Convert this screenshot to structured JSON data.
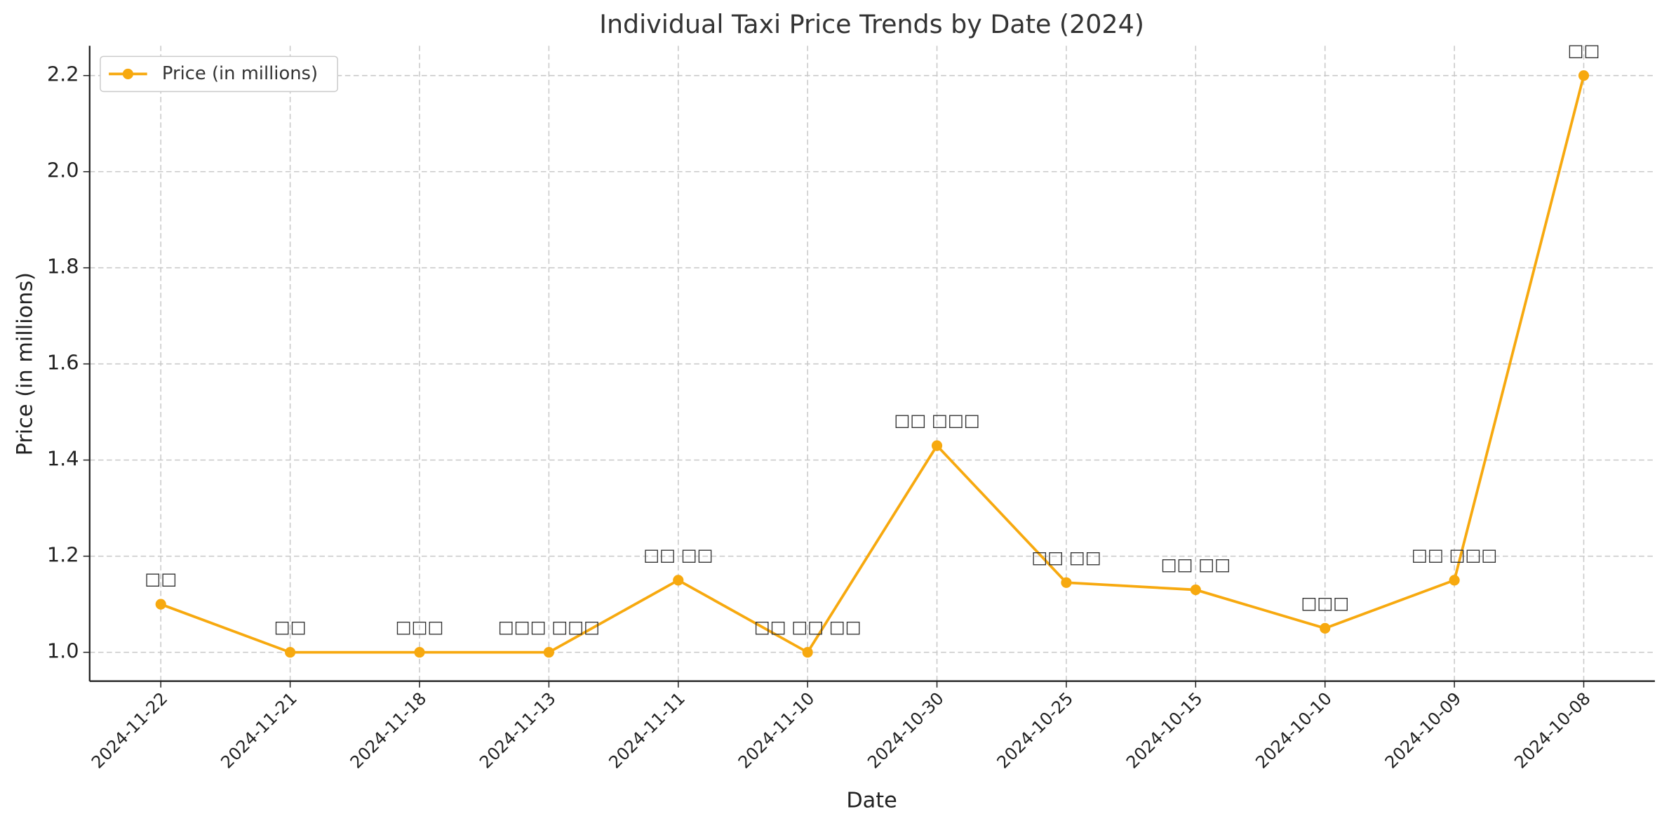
{
  "chart_data": {
    "type": "line",
    "title": "Individual Taxi Price Trends by Date (2024)",
    "x_label": "Date",
    "y_label": "Price (in millions)",
    "categories": [
      "2024-11-22",
      "2024-11-21",
      "2024-11-18",
      "2024-11-13",
      "2024-11-11",
      "2024-11-10",
      "2024-10-30",
      "2024-10-25",
      "2024-10-15",
      "2024-10-10",
      "2024-10-09",
      "2024-10-08"
    ],
    "series": [
      {
        "name": "Price (in millions)",
        "color": "#f7a90f",
        "values": [
          1.1,
          1.0,
          1.0,
          1.0,
          1.15,
          1.0,
          1.43,
          1.145,
          1.13,
          1.05,
          1.15,
          2.2
        ]
      }
    ],
    "annotations": [
      "□□",
      "□□",
      "□□□",
      "□□□ □□□",
      "□□ □□",
      "□□ □□ □□",
      "□□ □□□",
      "□□ □□",
      "□□ □□",
      "□□□",
      "□□ □□□",
      "□□"
    ],
    "ylim": [
      0.94,
      2.262
    ],
    "yticks": [
      {
        "value": 1.0,
        "label": "1.0"
      },
      1.2,
      1.4,
      1.6,
      1.8,
      {
        "value": 2.0,
        "label": "2.0"
      },
      2.2
    ],
    "grid": true,
    "legend": "upper left"
  }
}
